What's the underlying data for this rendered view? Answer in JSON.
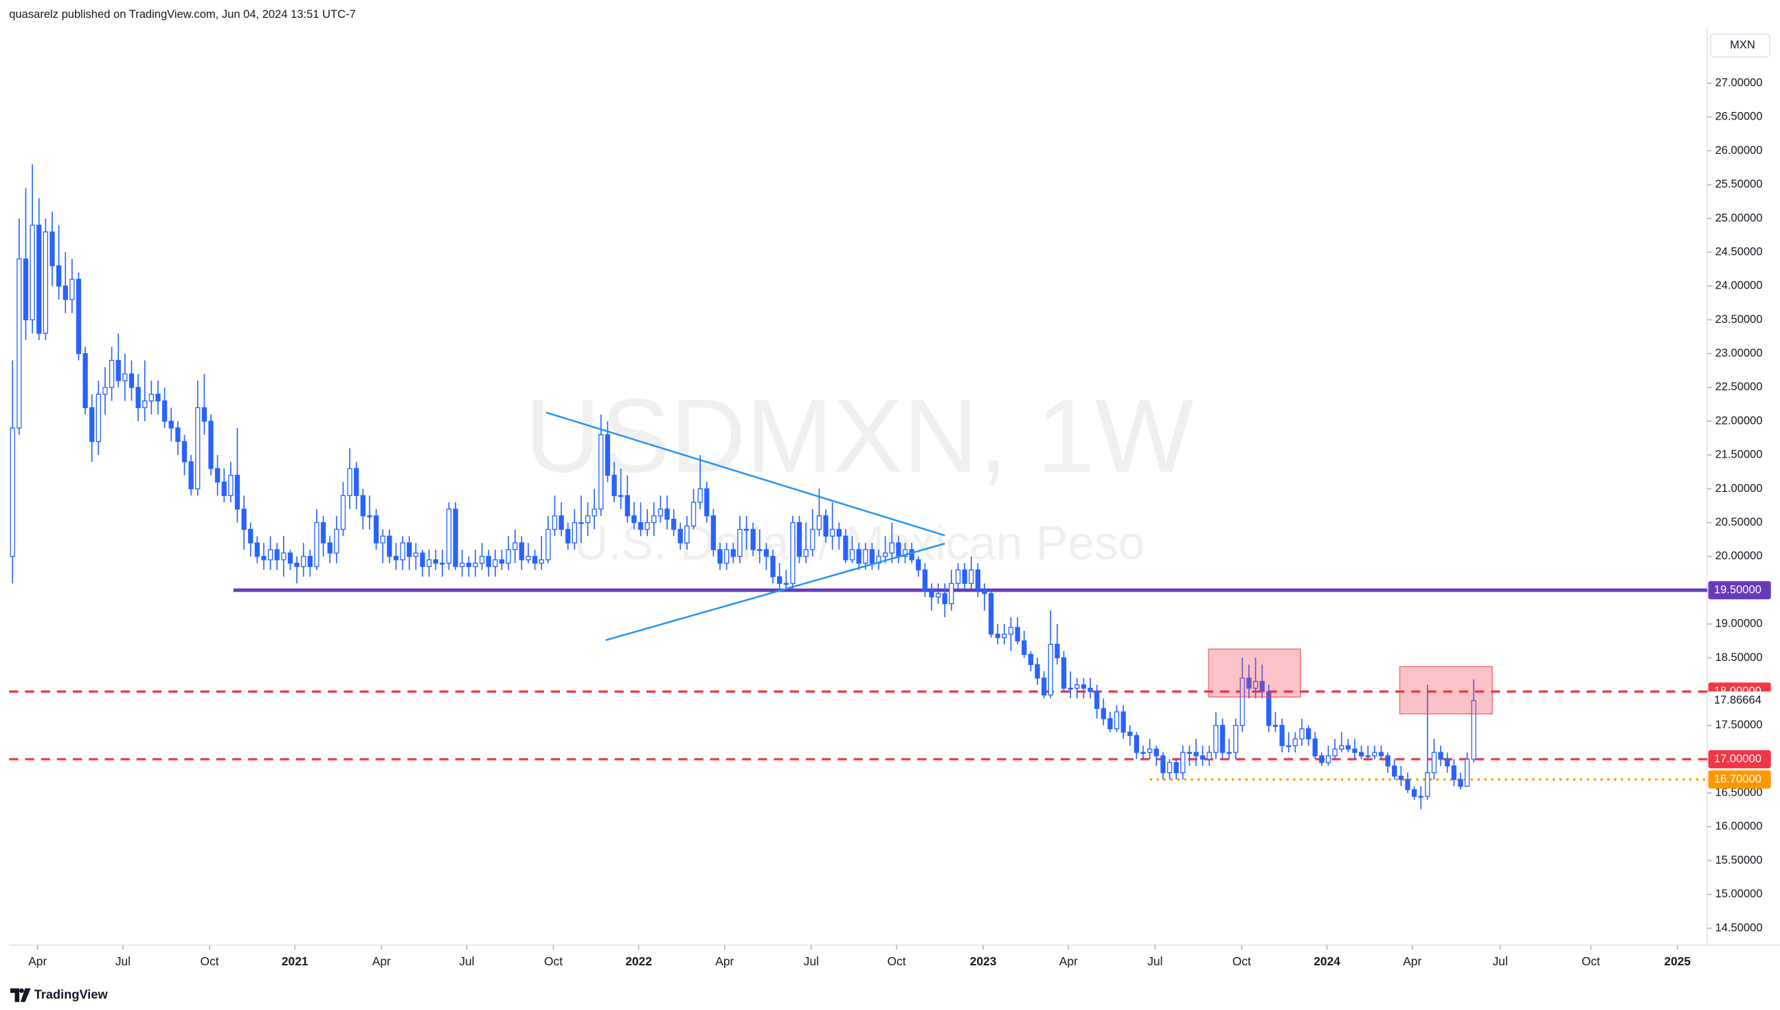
{
  "header": "quasarelz published on TradingView.com, Jun 04, 2024 13:51 UTC-7",
  "footer_logo": "TradingView",
  "chart_data": {
    "type": "candlestick",
    "title": "USDMXN, 1W",
    "subtitle": "U.S. Dollar / Mexican Peso",
    "currency": "MXN",
    "color": "#2962ff",
    "up_fill": "#ffffff",
    "open": [
      20.0,
      21.9,
      24.4,
      23.5,
      24.9,
      23.3,
      24.8,
      24.3,
      24.0,
      23.8,
      24.1,
      23.0,
      22.2,
      21.7,
      22.4,
      22.5,
      22.9,
      22.6,
      22.7,
      22.5,
      22.2,
      22.3,
      22.4,
      22.3,
      22.0,
      21.9,
      21.7,
      21.4,
      21.0,
      22.2,
      22.0,
      21.3,
      21.1,
      20.9,
      21.2,
      20.7,
      20.4,
      20.2,
      20.0,
      19.95,
      20.1,
      19.95,
      20.05,
      19.9,
      19.85,
      20.0,
      19.85,
      20.5,
      20.2,
      20.05,
      20.4,
      20.9,
      21.3,
      20.9,
      20.6,
      20.6,
      20.2,
      20.3,
      20.0,
      19.95,
      20.2,
      20.0,
      20.05,
      19.85,
      19.95,
      19.9,
      19.9,
      20.7,
      19.85,
      19.9,
      19.85,
      19.9,
      20.0,
      19.85,
      19.95,
      19.9,
      20.1,
      20.2,
      19.95,
      20.0,
      19.9,
      19.95,
      20.4,
      20.6,
      20.4,
      20.2,
      20.5,
      20.5,
      20.6,
      20.7,
      21.8,
      21.2,
      20.9,
      20.9,
      20.6,
      20.5,
      20.4,
      20.5,
      20.6,
      20.7,
      20.55,
      20.4,
      20.2,
      20.45,
      20.8,
      21.0,
      20.6,
      20.1,
      19.9,
      20.1,
      20.0,
      20.4,
      20.4,
      20.1,
      20.1,
      20.0,
      19.7,
      19.6,
      19.6,
      20.5,
      20.0,
      20.1,
      20.4,
      20.6,
      20.3,
      20.4,
      20.3,
      19.95,
      20.1,
      19.9,
      20.1,
      19.9,
      20.0,
      20.05,
      20.2,
      20.0,
      20.1,
      19.95,
      19.8,
      19.5,
      19.4,
      19.45,
      19.3,
      19.6,
      19.8,
      19.6,
      19.8,
      19.5,
      19.45,
      18.85,
      18.8,
      18.85,
      18.95,
      18.75,
      18.55,
      18.4,
      18.2,
      17.95,
      18.7,
      18.5,
      18.05,
      18.05,
      18.1,
      18.05,
      18.0,
      17.75,
      17.6,
      17.45,
      17.7,
      17.4,
      17.35,
      17.1,
      17.1,
      17.15,
      17.05,
      16.8,
      16.95,
      16.8,
      17.1,
      17.1,
      17.05,
      17.0,
      17.1,
      17.5,
      17.1,
      17.1,
      17.5,
      18.2,
      18.05,
      18.15,
      18.0,
      17.5,
      17.5,
      17.2,
      17.2,
      17.3,
      17.45,
      17.3,
      17.05,
      16.95,
      17.05,
      17.15,
      17.2,
      17.15,
      17.1,
      17.05,
      17.05,
      17.1,
      17.05,
      16.9,
      16.75,
      16.7,
      16.55,
      16.45,
      16.45,
      16.8,
      17.1,
      17.0,
      16.9,
      16.7,
      16.6,
      17.0
    ],
    "high": [
      22.9,
      25.0,
      25.45,
      25.8,
      25.3,
      25.0,
      25.1,
      24.9,
      24.5,
      24.4,
      24.2,
      23.1,
      22.4,
      22.6,
      22.8,
      23.1,
      23.3,
      23.0,
      22.9,
      22.7,
      22.9,
      22.6,
      22.6,
      22.5,
      22.2,
      22.0,
      21.8,
      21.5,
      22.6,
      22.7,
      22.1,
      21.5,
      21.3,
      21.4,
      21.9,
      20.9,
      20.5,
      20.3,
      20.2,
      20.3,
      20.2,
      20.3,
      20.1,
      20.0,
      20.2,
      20.1,
      20.7,
      20.6,
      20.3,
      20.6,
      21.1,
      21.6,
      21.4,
      21.0,
      20.9,
      20.7,
      20.4,
      20.4,
      20.2,
      20.3,
      20.3,
      20.2,
      20.1,
      20.1,
      20.1,
      20.1,
      20.8,
      20.8,
      20.1,
      20.0,
      20.1,
      20.2,
      20.1,
      20.1,
      20.1,
      20.3,
      20.4,
      20.3,
      20.2,
      20.1,
      20.3,
      20.6,
      20.9,
      20.8,
      20.5,
      20.7,
      20.9,
      20.8,
      21.0,
      22.1,
      22.0,
      21.4,
      21.3,
      21.2,
      20.8,
      20.8,
      20.7,
      20.8,
      20.9,
      20.9,
      20.7,
      20.5,
      20.6,
      21.0,
      21.5,
      21.1,
      20.7,
      20.2,
      20.2,
      20.2,
      20.6,
      20.6,
      20.5,
      20.4,
      20.2,
      20.1,
      19.9,
      19.8,
      20.6,
      20.6,
      20.5,
      20.7,
      21.0,
      20.7,
      20.8,
      20.5,
      20.4,
      20.3,
      20.2,
      20.2,
      20.2,
      20.1,
      20.3,
      20.5,
      20.3,
      20.2,
      20.2,
      20.0,
      19.9,
      19.6,
      19.6,
      19.6,
      19.8,
      19.9,
      19.9,
      20.0,
      19.9,
      19.6,
      19.5,
      19.0,
      19.0,
      19.1,
      19.1,
      18.9,
      18.6,
      18.5,
      18.3,
      19.2,
      19.0,
      18.6,
      18.3,
      18.2,
      18.2,
      18.2,
      18.1,
      17.9,
      17.7,
      17.8,
      17.8,
      17.5,
      17.4,
      17.2,
      17.3,
      17.2,
      17.1,
      17.0,
      17.0,
      17.2,
      17.2,
      17.3,
      17.2,
      17.2,
      17.7,
      17.6,
      17.3,
      17.6,
      18.5,
      18.4,
      18.5,
      18.4,
      18.1,
      17.7,
      17.6,
      17.4,
      17.4,
      17.6,
      17.5,
      17.4,
      17.1,
      17.2,
      17.3,
      17.4,
      17.3,
      17.3,
      17.2,
      17.2,
      17.2,
      17.2,
      17.1,
      17.0,
      16.9,
      16.8,
      16.6,
      16.6,
      18.1,
      17.3,
      17.2,
      17.1,
      17.0,
      16.8,
      17.1,
      18.18
    ],
    "low": [
      19.6,
      21.8,
      23.2,
      23.3,
      23.2,
      23.2,
      24.0,
      23.8,
      23.6,
      23.6,
      22.9,
      22.1,
      21.4,
      21.5,
      22.1,
      22.3,
      22.5,
      22.3,
      22.3,
      22.0,
      22.0,
      22.1,
      22.1,
      21.9,
      21.7,
      21.5,
      21.2,
      20.9,
      20.9,
      21.8,
      21.2,
      20.9,
      20.8,
      20.8,
      20.5,
      20.1,
      20.0,
      19.9,
      19.8,
      19.8,
      19.8,
      19.7,
      19.8,
      19.6,
      19.7,
      19.7,
      19.8,
      20.0,
      19.9,
      19.9,
      20.3,
      20.7,
      20.7,
      20.4,
      20.4,
      20.1,
      19.9,
      19.9,
      19.8,
      19.8,
      19.8,
      19.8,
      19.7,
      19.7,
      19.8,
      19.7,
      19.8,
      19.8,
      19.7,
      19.7,
      19.7,
      19.8,
      19.7,
      19.7,
      19.8,
      19.8,
      19.9,
      19.8,
      19.9,
      19.8,
      19.8,
      19.9,
      20.3,
      20.3,
      20.1,
      20.1,
      20.2,
      20.3,
      20.4,
      20.6,
      21.1,
      20.8,
      20.7,
      20.5,
      20.4,
      20.3,
      20.3,
      20.3,
      20.5,
      20.4,
      20.3,
      20.1,
      20.1,
      20.4,
      20.7,
      20.5,
      20.0,
      19.8,
      19.8,
      19.9,
      19.9,
      20.1,
      20.0,
      19.9,
      19.8,
      19.6,
      19.5,
      19.5,
      19.5,
      19.9,
      19.9,
      20.0,
      20.3,
      20.2,
      20.1,
      20.1,
      19.9,
      19.9,
      19.8,
      19.8,
      19.8,
      19.8,
      19.9,
      19.9,
      19.9,
      19.9,
      19.9,
      19.7,
      19.4,
      19.2,
      19.3,
      19.1,
      19.2,
      19.5,
      19.5,
      19.5,
      19.4,
      19.2,
      18.8,
      18.7,
      18.7,
      18.6,
      18.7,
      18.5,
      18.3,
      18.1,
      17.9,
      17.9,
      18.4,
      18.0,
      17.9,
      17.9,
      17.9,
      17.9,
      17.6,
      17.5,
      17.4,
      17.4,
      17.3,
      17.2,
      17.0,
      17.0,
      17.0,
      16.9,
      16.7,
      16.7,
      16.7,
      16.7,
      16.9,
      16.9,
      16.9,
      16.9,
      17.0,
      17.0,
      17.0,
      17.0,
      17.4,
      17.9,
      17.9,
      17.9,
      17.4,
      17.4,
      17.1,
      17.1,
      17.1,
      17.2,
      17.2,
      17.0,
      16.9,
      16.9,
      17.0,
      17.1,
      17.1,
      17.0,
      17.0,
      17.0,
      17.0,
      17.0,
      16.8,
      16.7,
      16.6,
      16.5,
      16.4,
      16.26,
      16.4,
      16.7,
      16.9,
      16.8,
      16.6,
      16.55,
      16.6,
      16.95
    ],
    "close": [
      21.9,
      24.4,
      23.5,
      24.9,
      23.3,
      24.8,
      24.3,
      24.0,
      23.8,
      24.1,
      23.0,
      22.2,
      21.7,
      22.4,
      22.5,
      22.9,
      22.6,
      22.7,
      22.5,
      22.2,
      22.3,
      22.4,
      22.3,
      22.0,
      21.9,
      21.7,
      21.4,
      21.0,
      22.2,
      22.0,
      21.3,
      21.1,
      20.9,
      21.2,
      20.7,
      20.4,
      20.2,
      20.0,
      19.95,
      20.1,
      19.95,
      20.05,
      19.9,
      19.85,
      20.0,
      19.85,
      20.5,
      20.2,
      20.05,
      20.4,
      20.9,
      21.3,
      20.9,
      20.6,
      20.6,
      20.2,
      20.3,
      20.0,
      19.95,
      20.2,
      20.0,
      20.05,
      19.85,
      19.95,
      19.9,
      19.9,
      20.7,
      19.85,
      19.9,
      19.85,
      19.9,
      20.0,
      19.85,
      19.95,
      19.9,
      20.1,
      20.2,
      19.95,
      20.0,
      19.9,
      19.95,
      20.4,
      20.6,
      20.4,
      20.2,
      20.5,
      20.5,
      20.6,
      20.7,
      21.8,
      21.2,
      20.9,
      20.9,
      20.6,
      20.5,
      20.4,
      20.5,
      20.6,
      20.7,
      20.55,
      20.4,
      20.2,
      20.45,
      20.8,
      21.0,
      20.6,
      20.1,
      19.9,
      20.1,
      20.0,
      20.4,
      20.4,
      20.1,
      20.1,
      20.0,
      19.7,
      19.6,
      19.6,
      20.5,
      20.0,
      20.1,
      20.4,
      20.6,
      20.3,
      20.4,
      20.3,
      19.95,
      20.1,
      19.9,
      20.1,
      19.9,
      20.0,
      20.05,
      20.2,
      20.0,
      20.1,
      19.95,
      19.8,
      19.5,
      19.4,
      19.45,
      19.3,
      19.6,
      19.8,
      19.6,
      19.8,
      19.5,
      19.45,
      18.85,
      18.8,
      18.85,
      18.95,
      18.75,
      18.55,
      18.4,
      18.2,
      17.95,
      18.7,
      18.5,
      18.05,
      18.05,
      18.1,
      18.05,
      18.0,
      17.75,
      17.6,
      17.45,
      17.7,
      17.4,
      17.35,
      17.1,
      17.1,
      17.15,
      17.05,
      16.8,
      16.95,
      16.8,
      17.1,
      17.1,
      17.05,
      17.0,
      17.1,
      17.5,
      17.1,
      17.1,
      17.5,
      18.2,
      18.05,
      18.15,
      18.0,
      17.5,
      17.5,
      17.2,
      17.2,
      17.3,
      17.45,
      17.3,
      17.05,
      16.95,
      17.05,
      17.15,
      17.2,
      17.15,
      17.1,
      17.05,
      17.05,
      17.1,
      17.05,
      16.9,
      16.75,
      16.7,
      16.55,
      16.45,
      16.45,
      16.8,
      17.1,
      17.0,
      16.9,
      16.7,
      16.6,
      17.0,
      17.86664
    ],
    "last_price_label": "17.86664",
    "xlim": [
      -0.52,
      256.3
    ],
    "xticks": [
      {
        "value": 3.79,
        "label": "Apr"
      },
      {
        "value": 16.7,
        "label": "Jul"
      },
      {
        "value": 29.8,
        "label": "Oct"
      },
      {
        "value": 42.7,
        "label": "2021"
      },
      {
        "value": 55.8,
        "label": "Apr"
      },
      {
        "value": 68.7,
        "label": "Jul"
      },
      {
        "value": 81.8,
        "label": "Oct"
      },
      {
        "value": 94.7,
        "label": "2022"
      },
      {
        "value": 107.7,
        "label": "Apr"
      },
      {
        "value": 120.8,
        "label": "Jul"
      },
      {
        "value": 133.7,
        "label": "Oct"
      },
      {
        "value": 146.8,
        "label": "2023"
      },
      {
        "value": 159.7,
        "label": "Apr"
      },
      {
        "value": 172.8,
        "label": "Jul"
      },
      {
        "value": 185.9,
        "label": "Oct"
      },
      {
        "value": 198.8,
        "label": "2024"
      },
      {
        "value": 211.7,
        "label": "Apr"
      },
      {
        "value": 225.0,
        "label": "Jul"
      },
      {
        "value": 238.7,
        "label": "Oct"
      },
      {
        "value": 251.8,
        "label": "2025"
      }
    ],
    "ylim": [
      14.25,
      27.81
    ],
    "yticks": [
      {
        "value": 14.5,
        "label": "14.50000"
      },
      {
        "value": 15,
        "label": "15.00000"
      },
      {
        "value": 15.5,
        "label": "15.50000"
      },
      {
        "value": 16,
        "label": "16.00000"
      },
      {
        "value": 16.5,
        "label": "16.50000"
      },
      {
        "value": 17,
        "label": "17.00000"
      },
      {
        "value": 17.5,
        "label": "17.50000"
      },
      {
        "value": 18,
        "label": "18.00000"
      },
      {
        "value": 18.5,
        "label": "18.50000"
      },
      {
        "value": 19,
        "label": "19.00000"
      },
      {
        "value": 19.5,
        "label": "19.50000"
      },
      {
        "value": 20,
        "label": "20.00000"
      },
      {
        "value": 20.5,
        "label": "20.50000"
      },
      {
        "value": 21,
        "label": "21.00000"
      },
      {
        "value": 21.5,
        "label": "21.50000"
      },
      {
        "value": 22,
        "label": "22.00000"
      },
      {
        "value": 22.5,
        "label": "22.50000"
      },
      {
        "value": 23,
        "label": "23.00000"
      },
      {
        "value": 23.5,
        "label": "23.50000"
      },
      {
        "value": 24,
        "label": "24.00000"
      },
      {
        "value": 24.5,
        "label": "24.50000"
      },
      {
        "value": 25,
        "label": "25.00000"
      },
      {
        "value": 25.5,
        "label": "25.50000"
      },
      {
        "value": 26,
        "label": "26.00000"
      },
      {
        "value": 26.5,
        "label": "26.50000"
      },
      {
        "value": 27,
        "label": "27.00000"
      }
    ],
    "grid": false,
    "levels": [
      {
        "value": 19.5,
        "label": "19.50000",
        "color": "#673ab7",
        "style": "solid",
        "x_start": 33.4
      },
      {
        "value": 18,
        "label": "18.00000",
        "color": "#f23645",
        "style": "dashed"
      },
      {
        "value": 17,
        "label": "17.00000",
        "color": "#f23645",
        "style": "dashed"
      },
      {
        "value": 16.7,
        "label": "16.70000",
        "color": "#ff9800",
        "style": "dotted",
        "x_start": 172.0
      }
    ],
    "trend_lines": [
      {
        "x": [
          80.7,
          141.0
        ],
        "y": [
          22.13,
          20.31
        ],
        "color": "#2196f3"
      },
      {
        "x": [
          89.7,
          141.0
        ],
        "y": [
          18.76,
          20.19
        ],
        "color": "#2196f3"
      }
    ],
    "boxes": [
      {
        "x": [
          180.9,
          194.8
        ],
        "y": [
          17.92,
          18.63
        ],
        "color": "#f23645"
      },
      {
        "x": [
          209.8,
          223.8
        ],
        "y": [
          17.67,
          18.37
        ],
        "color": "#f23645"
      }
    ]
  }
}
